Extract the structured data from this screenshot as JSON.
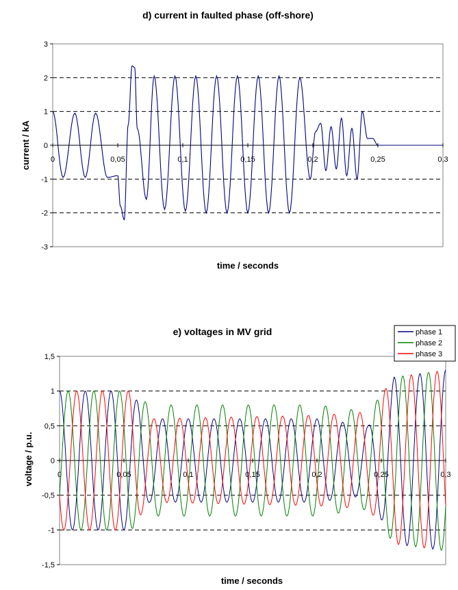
{
  "chart_data": [
    {
      "type": "line",
      "title": "d) current in faulted phase (off-shore)",
      "xlabel": "time / seconds",
      "ylabel": "current / kA",
      "xlim": [
        0,
        0.3
      ],
      "ylim": [
        -3,
        3
      ],
      "x_ticks": [
        0,
        0.05,
        0.1,
        0.15,
        0.2,
        0.25,
        0.3
      ],
      "x_tick_labels": [
        "0",
        "0,05",
        "0,1",
        "0,15",
        "0,2",
        "0,25",
        "0,3"
      ],
      "y_ticks": [
        -3,
        -2,
        -1,
        0,
        1,
        2,
        3
      ],
      "y_tick_labels": [
        "-3",
        "-2",
        "-1",
        "0",
        "1",
        "2",
        "3"
      ],
      "grid": "horizontal dashed",
      "legend": "none",
      "series": [
        {
          "color": "#000080",
          "x": [
            0,
            0.008,
            0.017,
            0.025,
            0.033,
            0.042,
            0.05,
            0.052,
            0.055,
            0.058,
            0.061,
            0.063,
            0.065,
            0.072,
            0.078,
            0.086,
            0.094,
            0.102,
            0.11,
            0.118,
            0.126,
            0.134,
            0.142,
            0.15,
            0.158,
            0.166,
            0.174,
            0.182,
            0.19,
            0.198,
            0.202,
            0.206,
            0.21,
            0.214,
            0.218,
            0.222,
            0.226,
            0.23,
            0.234,
            0.238,
            0.242,
            0.246,
            0.25,
            0.254,
            0.257,
            0.26,
            0.262,
            0.3
          ],
          "values": [
            1.0,
            -0.95,
            0.95,
            -0.95,
            0.95,
            -0.95,
            -0.9,
            -1.8,
            -2.2,
            0.6,
            2.35,
            2.3,
            0.5,
            -1.6,
            2.05,
            -1.9,
            2.05,
            -1.95,
            2.05,
            -2.0,
            2.05,
            -2.0,
            2.05,
            -2.0,
            2.05,
            -2.0,
            2.05,
            -2.0,
            2.0,
            -1.0,
            0.4,
            0.65,
            -0.75,
            0.55,
            -0.7,
            0.8,
            -0.9,
            0.5,
            -1.0,
            1.0,
            0.2,
            0.2,
            0,
            0,
            0,
            0,
            0,
            0
          ]
        }
      ]
    },
    {
      "type": "line",
      "title": "e) voltages in MV grid",
      "xlabel": "time / seconds",
      "ylabel": "voltage / p.u.",
      "xlim": [
        0,
        0.3
      ],
      "ylim": [
        -1.5,
        1.5
      ],
      "x_ticks": [
        0,
        0.05,
        0.1,
        0.15,
        0.2,
        0.25,
        0.3
      ],
      "x_tick_labels": [
        "0",
        "0,05",
        "0,1",
        "0,15",
        "0,2",
        "0,25",
        "0,3"
      ],
      "y_ticks": [
        -1.5,
        -1,
        -0.5,
        0,
        0.5,
        1,
        1.5
      ],
      "y_tick_labels": [
        "-1,5",
        "-1",
        "-0,5",
        "0",
        "0,5",
        "1",
        "1,5"
      ],
      "grid": "horizontal dashed",
      "legend": "top-right",
      "series": [
        {
          "name": "phase 1",
          "color": "#000080",
          "amplitude_by_time": [
            [
              0,
              1.0
            ],
            [
              0.055,
              1.0
            ],
            [
              0.07,
              0.6
            ],
            [
              0.2,
              0.6
            ],
            [
              0.24,
              0.5
            ],
            [
              0.26,
              1.2
            ],
            [
              0.3,
              1.3
            ]
          ]
        },
        {
          "name": "phase 2",
          "color": "#008000",
          "amplitude_by_time": [
            [
              0,
              1.0
            ],
            [
              0.055,
              1.0
            ],
            [
              0.07,
              0.8
            ],
            [
              0.2,
              0.8
            ],
            [
              0.24,
              0.7
            ],
            [
              0.26,
              1.2
            ],
            [
              0.3,
              1.3
            ]
          ]
        },
        {
          "name": "phase 3",
          "color": "#ff0000",
          "amplitude_by_time": [
            [
              0,
              1.0
            ],
            [
              0.055,
              1.0
            ],
            [
              0.07,
              0.6
            ],
            [
              0.2,
              0.65
            ],
            [
              0.24,
              0.7
            ],
            [
              0.26,
              1.2
            ],
            [
              0.3,
              1.3
            ]
          ]
        }
      ],
      "frequency_hz": 50,
      "phase_offsets_deg": [
        90,
        330,
        210
      ]
    }
  ]
}
